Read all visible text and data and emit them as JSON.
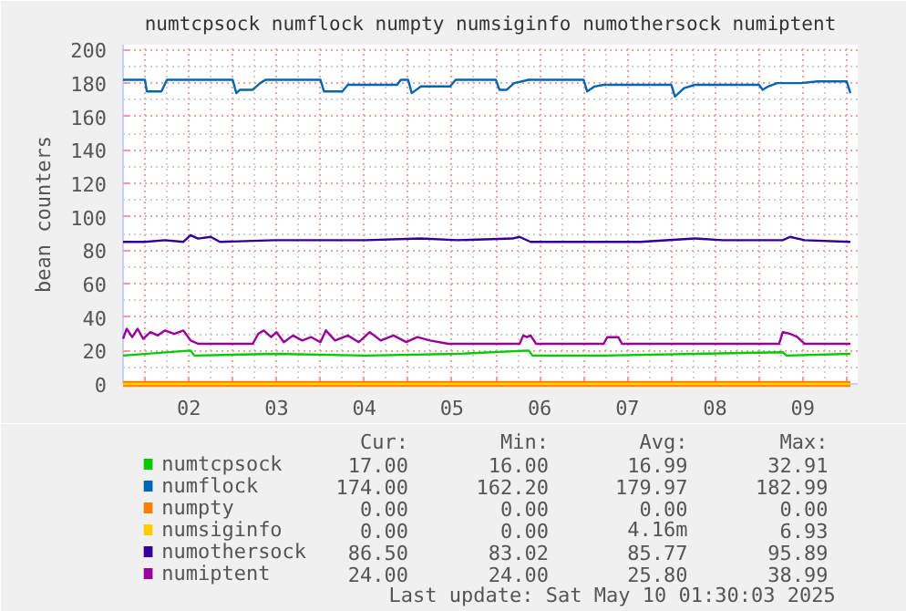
{
  "chart_data": {
    "type": "line",
    "title": "numtcpsock numflock numpty numsiginfo numothersock numiptent",
    "ylabel": "bean counters",
    "xlim": [
      "2025-05-01T18:00",
      "2025-05-10T03:00"
    ],
    "ylim": [
      0,
      203
    ],
    "xticks": [
      {
        "value": "2025-05-02T00:00",
        "label": null
      },
      {
        "value": "2025-05-02T12:00",
        "label": "02"
      },
      {
        "value": "2025-05-03T00:00",
        "label": null
      },
      {
        "value": "2025-05-03T12:00",
        "label": "03"
      },
      {
        "value": "2025-05-04T00:00",
        "label": null
      },
      {
        "value": "2025-05-04T12:00",
        "label": "04"
      },
      {
        "value": "2025-05-05T00:00",
        "label": null
      },
      {
        "value": "2025-05-05T12:00",
        "label": "05"
      },
      {
        "value": "2025-05-06T00:00",
        "label": null
      },
      {
        "value": "2025-05-06T12:00",
        "label": "06"
      },
      {
        "value": "2025-05-07T00:00",
        "label": null
      },
      {
        "value": "2025-05-07T12:00",
        "label": "07"
      },
      {
        "value": "2025-05-08T00:00",
        "label": null
      },
      {
        "value": "2025-05-08T12:00",
        "label": "08"
      },
      {
        "value": "2025-05-09T00:00",
        "label": null
      },
      {
        "value": "2025-05-09T12:00",
        "label": "09"
      },
      {
        "value": "2025-05-10T00:00",
        "label": null
      }
    ],
    "yticks": [
      0,
      20,
      40,
      60,
      80,
      100,
      120,
      140,
      160,
      180,
      200
    ],
    "grid": true,
    "legend": "bottom",
    "marker": "none",
    "line_style": "solid",
    "series": [
      {
        "name": "numtcpsock",
        "color": "#00cc00",
        "x": [
          "2025-05-01T18:00",
          "2025-05-02T12:30",
          "2025-05-02T13:30",
          "2025-05-03T11:30",
          "2025-05-04T12:30",
          "2025-05-05T13:30",
          "2025-05-06T09:00",
          "2025-05-06T10:00",
          "2025-05-07T05:30",
          "2025-05-09T06:30",
          "2025-05-09T07:30",
          "2025-05-10T01:00"
        ],
        "values": [
          17,
          20,
          17,
          18,
          17,
          18,
          20,
          17,
          17,
          19,
          17,
          18
        ]
      },
      {
        "name": "numflock",
        "color": "#0066b3",
        "x": [
          "2025-05-01T18:00",
          "2025-05-02T00:00",
          "2025-05-02T00:30",
          "2025-05-02T04:30",
          "2025-05-02T06:00",
          "2025-05-03T00:00",
          "2025-05-03T01:00",
          "2025-05-03T02:00",
          "2025-05-03T05:30",
          "2025-05-03T07:30",
          "2025-05-03T09:00",
          "2025-05-04T00:00",
          "2025-05-04T01:00",
          "2025-05-04T06:00",
          "2025-05-04T07:30",
          "2025-05-04T21:00",
          "2025-05-04T22:00",
          "2025-05-05T00:00",
          "2025-05-05T01:00",
          "2025-05-05T03:30",
          "2025-05-05T11:30",
          "2025-05-05T13:00",
          "2025-05-06T00:00",
          "2025-05-06T01:00",
          "2025-05-06T03:00",
          "2025-05-06T05:00",
          "2025-05-06T09:00",
          "2025-05-07T00:00",
          "2025-05-07T01:00",
          "2025-05-07T03:00",
          "2025-05-07T05:30",
          "2025-05-08T00:00",
          "2025-05-08T01:00",
          "2025-05-08T03:30",
          "2025-05-08T06:30",
          "2025-05-09T00:00",
          "2025-05-09T01:00",
          "2025-05-09T02:30",
          "2025-05-09T05:00",
          "2025-05-09T11:30",
          "2025-05-09T16:00",
          "2025-05-10T00:00",
          "2025-05-10T01:00"
        ],
        "values": [
          182,
          182,
          175,
          175,
          182,
          182,
          174,
          176,
          176,
          180,
          182,
          182,
          175,
          175,
          179,
          179,
          182,
          182,
          174,
          178,
          178,
          182,
          182,
          176,
          176,
          180,
          182,
          182,
          175,
          178,
          179,
          179,
          172,
          177,
          179,
          179,
          176,
          178,
          180,
          180,
          181,
          181,
          174
        ]
      },
      {
        "name": "numpty",
        "color": "#ff8000",
        "x": [
          "2025-05-01T18:00",
          "2025-05-10T01:00"
        ],
        "values": [
          0,
          0
        ]
      },
      {
        "name": "numsiginfo",
        "color": "#ffcc00",
        "x": [
          "2025-05-01T18:00",
          "2025-05-10T01:00"
        ],
        "values": [
          0,
          0
        ]
      },
      {
        "name": "numothersock",
        "color": "#330099",
        "x": [
          "2025-05-01T18:00",
          "2025-05-02T00:00",
          "2025-05-02T05:30",
          "2025-05-02T10:30",
          "2025-05-02T12:30",
          "2025-05-02T14:30",
          "2025-05-02T18:00",
          "2025-05-02T20:30",
          "2025-05-03T11:30",
          "2025-05-04T12:30",
          "2025-05-05T03:30",
          "2025-05-05T13:30",
          "2025-05-06T04:30",
          "2025-05-06T06:30",
          "2025-05-06T09:30",
          "2025-05-07T15:30",
          "2025-05-08T06:30",
          "2025-05-08T14:00",
          "2025-05-09T06:30",
          "2025-05-09T08:30",
          "2025-05-09T12:30",
          "2025-05-10T01:00"
        ],
        "values": [
          85,
          85,
          86,
          85,
          89,
          87,
          88,
          85,
          86,
          86,
          87,
          86,
          87,
          88,
          85,
          85,
          87,
          86,
          86,
          88,
          86,
          85
        ]
      },
      {
        "name": "numiptent",
        "color": "#990099",
        "x": [
          "2025-05-01T18:00",
          "2025-05-01T19:00",
          "2025-05-01T20:30",
          "2025-05-01T22:00",
          "2025-05-01T23:30",
          "2025-05-02T01:30",
          "2025-05-02T03:30",
          "2025-05-02T05:30",
          "2025-05-02T08:00",
          "2025-05-02T10:30",
          "2025-05-02T12:30",
          "2025-05-02T14:30",
          "2025-05-03T05:30",
          "2025-05-03T07:00",
          "2025-05-03T08:30",
          "2025-05-03T10:30",
          "2025-05-03T12:00",
          "2025-05-03T14:00",
          "2025-05-03T16:30",
          "2025-05-03T19:00",
          "2025-05-03T21:30",
          "2025-05-04T00:00",
          "2025-05-04T01:30",
          "2025-05-04T04:00",
          "2025-05-04T07:30",
          "2025-05-04T10:30",
          "2025-05-04T13:30",
          "2025-05-04T16:30",
          "2025-05-04T20:00",
          "2025-05-04T23:30",
          "2025-05-05T02:30",
          "2025-05-05T06:00",
          "2025-05-05T11:00",
          "2025-05-06T06:30",
          "2025-05-06T07:30",
          "2025-05-06T08:30",
          "2025-05-06T09:30",
          "2025-05-06T11:00",
          "2025-05-07T05:30",
          "2025-05-07T06:30",
          "2025-05-07T09:30",
          "2025-05-07T10:30",
          "2025-05-09T05:30",
          "2025-05-09T06:30",
          "2025-05-09T08:30",
          "2025-05-09T10:30",
          "2025-05-09T12:30",
          "2025-05-10T01:00"
        ],
        "values": [
          27,
          33,
          28,
          33,
          27,
          31,
          29,
          32,
          30,
          32,
          26,
          24,
          24,
          30,
          32,
          28,
          31,
          25,
          29,
          26,
          28,
          25,
          32,
          26,
          29,
          25,
          31,
          26,
          29,
          25,
          28,
          26,
          24,
          24,
          29,
          28,
          29,
          24,
          24,
          28,
          28,
          24,
          24,
          31,
          30,
          28,
          24,
          24
        ]
      }
    ],
    "annotations": [
      "Cur:",
      "Min:",
      "Avg:",
      "Max:",
      "17.00",
      "16.00",
      "16.99",
      "32.91",
      "174.00",
      "162.20",
      "179.97",
      "182.99",
      "0.00",
      "0.00",
      "0.00",
      "0.00",
      "0.00",
      "0.00",
      "4.16m",
      "6.93",
      "86.50",
      "83.02",
      "85.77",
      "95.89",
      "24.00",
      "24.00",
      "25.80",
      "38.99",
      "Last update: Sat May 10 01:30:03 2025"
    ]
  }
}
